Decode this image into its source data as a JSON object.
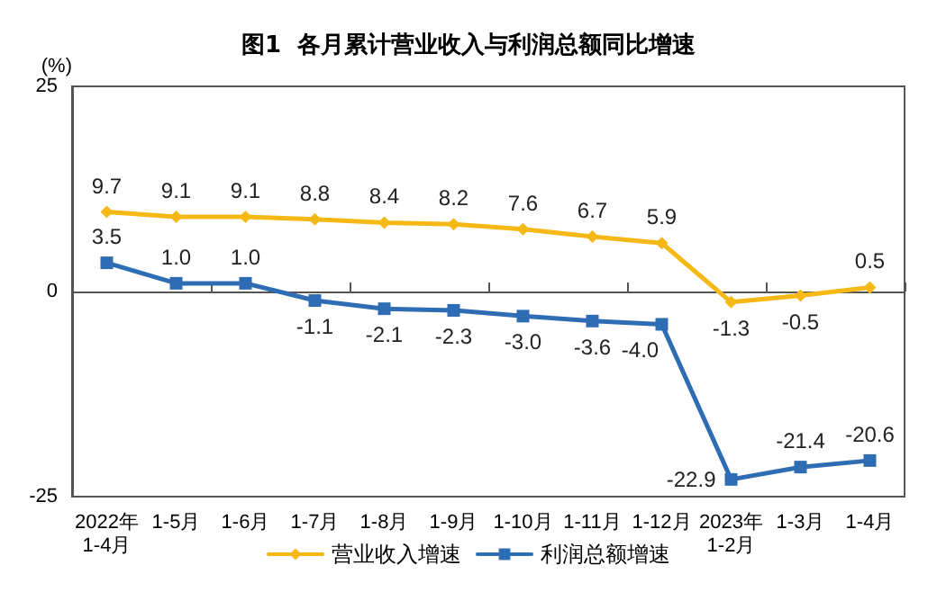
{
  "chart_data": {
    "type": "line",
    "title": "图1  各月累计营业收入与利润总额同比增速",
    "ylabel": "(%)",
    "categories": [
      "2022年\n1-4月",
      "1-5月",
      "1-6月",
      "1-7月",
      "1-8月",
      "1-9月",
      "1-10月",
      "1-11月",
      "1-12月",
      "2023年\n1-2月",
      "1-3月",
      "1-4月"
    ],
    "series": [
      {
        "name": "营业收入增速",
        "color": "#f5b814",
        "marker": "diamond",
        "values": [
          9.7,
          9.1,
          9.1,
          8.8,
          8.4,
          8.2,
          7.6,
          6.7,
          5.9,
          -1.3,
          -0.5,
          0.5
        ],
        "value_labels": [
          "9.7",
          "9.1",
          "9.1",
          "8.8",
          "8.4",
          "8.2",
          "7.6",
          "6.7",
          "5.9",
          "-1.3",
          "-0.5",
          "0.5"
        ]
      },
      {
        "name": "利润总额增速",
        "color": "#2e6db4",
        "marker": "square",
        "values": [
          3.5,
          1.0,
          1.0,
          -1.1,
          -2.1,
          -2.3,
          -3.0,
          -3.6,
          -4.0,
          -22.9,
          -21.4,
          -20.6
        ],
        "value_labels": [
          "3.5",
          "1.0",
          "1.0",
          "-1.1",
          "-2.1",
          "-2.3",
          "-3.0",
          "-3.6",
          "-4.0",
          "-22.9",
          "-21.4",
          "-20.6"
        ]
      }
    ],
    "ylim": [
      -25,
      25
    ],
    "yticks": [
      -25,
      0,
      25
    ],
    "legend": "bottom",
    "line_style": "solid"
  }
}
